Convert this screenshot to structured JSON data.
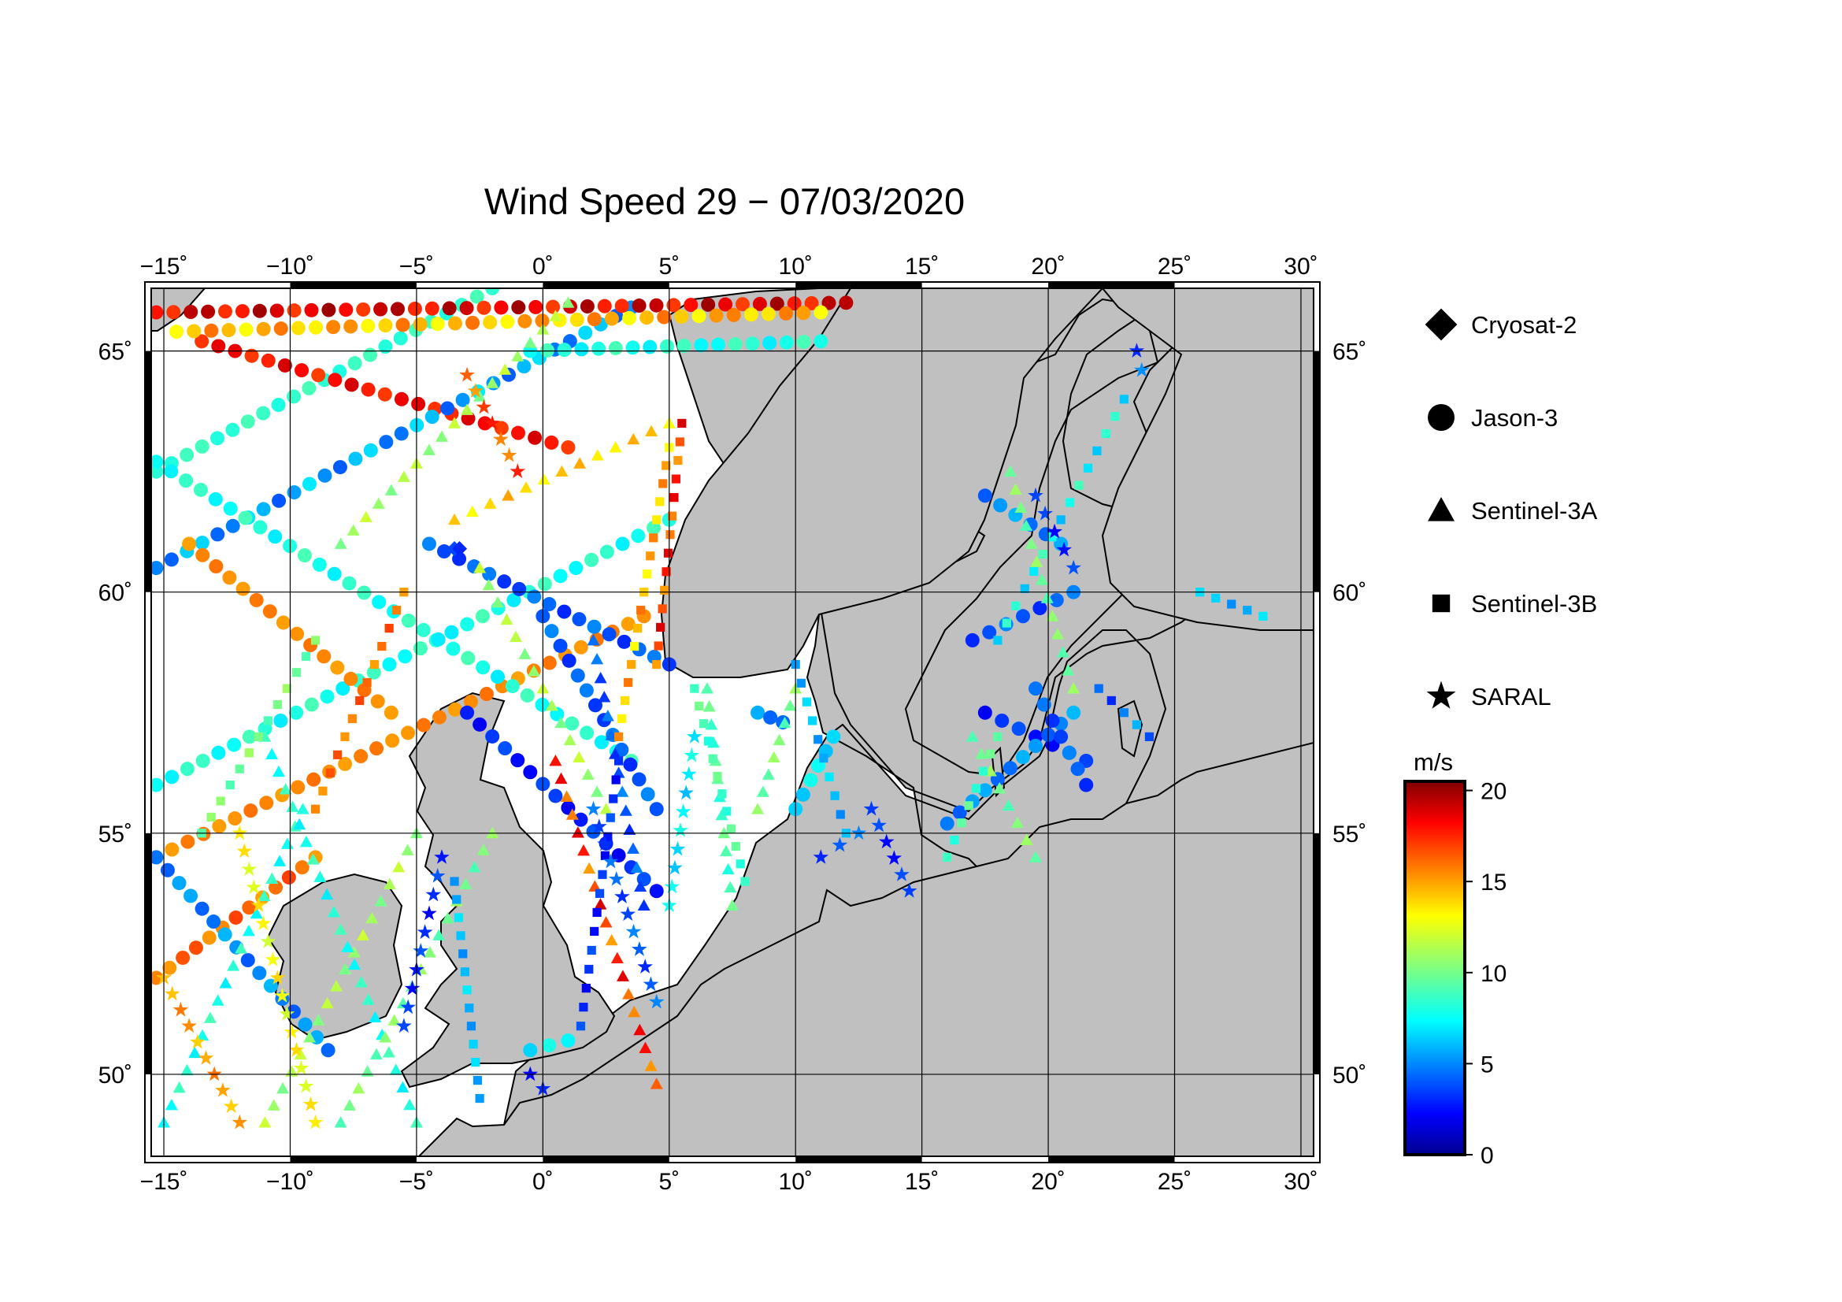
{
  "title": "Wind Speed 29 − 07/03/2020",
  "map": {
    "lon_range": [
      -15.5,
      30.5
    ],
    "lat_range": [
      48.3,
      66.3
    ],
    "lon_ticks": [
      -15,
      -10,
      -5,
      0,
      5,
      10,
      15,
      20,
      25,
      30
    ],
    "lon_tick_labels": [
      "−15˚",
      "−10˚",
      "−5˚",
      "0˚",
      "5˚",
      "10˚",
      "15˚",
      "20˚",
      "25˚",
      "30˚"
    ],
    "lat_ticks": [
      50,
      55,
      60,
      65
    ],
    "lat_tick_labels": [
      "50˚",
      "55˚",
      "60˚",
      "65˚"
    ],
    "land_color": "#c0c0c0",
    "sea_color": "#ffffff"
  },
  "legend": {
    "items": [
      {
        "label": "Cryosat-2",
        "symbol": "diamond"
      },
      {
        "label": "Jason-3",
        "symbol": "circle"
      },
      {
        "label": "Sentinel-3A",
        "symbol": "triangle"
      },
      {
        "label": "Sentinel-3B",
        "symbol": "square"
      },
      {
        "label": "SARAL",
        "symbol": "star"
      }
    ]
  },
  "colorbar": {
    "unit": "m/s",
    "min": 0,
    "max": 20.5,
    "ticks": [
      0,
      5,
      10,
      15,
      20
    ],
    "tick_labels": [
      "0",
      "5",
      "10",
      "15",
      "20"
    ],
    "colormap": "jet"
  },
  "chart_data": {
    "type": "scatter",
    "title": "Wind Speed 29 − 07/03/2020",
    "xlim": [
      -15.5,
      30.5
    ],
    "ylim": [
      48.3,
      66.3
    ],
    "value_unit": "m/s",
    "series": [
      {
        "name": "Jason-3",
        "symbol": "circle",
        "tracks": [
          {
            "from": [
              -15.3,
              62.5
            ],
            "to": [
              -2.0,
              66.3
            ],
            "speed": [
              8,
              9
            ]
          },
          {
            "from": [
              -13.5,
              65.2
            ],
            "to": [
              1.0,
              63.0
            ],
            "speed": [
              17,
              19
            ]
          },
          {
            "from": [
              -15.3,
              60.5
            ],
            "to": [
              3.5,
              65.9
            ],
            "speed": [
              4,
              7
            ]
          },
          {
            "from": [
              -15.3,
              56.0
            ],
            "to": [
              5.0,
              61.5
            ],
            "speed": [
              7,
              9
            ]
          },
          {
            "from": [
              -15.3,
              54.5
            ],
            "to": [
              4.0,
              59.5
            ],
            "speed": [
              15,
              16
            ]
          },
          {
            "from": [
              -14.0,
              61.0
            ],
            "to": [
              -6.0,
              57.5
            ],
            "speed": [
              15,
              16
            ]
          },
          {
            "from": [
              -15.3,
              62.7
            ],
            "to": [
              3.5,
              56.5
            ],
            "speed": [
              7,
              9
            ]
          },
          {
            "from": [
              -15.3,
              52.0
            ],
            "to": [
              -9.0,
              54.5
            ],
            "speed": [
              15,
              17
            ]
          },
          {
            "from": [
              -15.3,
              54.5
            ],
            "to": [
              -8.5,
              50.5
            ],
            "speed": [
              4,
              6
            ]
          },
          {
            "from": [
              -4.5,
              61.0
            ],
            "to": [
              5.0,
              58.5
            ],
            "speed": [
              3,
              5
            ]
          },
          {
            "from": [
              -3.0,
              57.5
            ],
            "to": [
              4.5,
              53.8
            ],
            "speed": [
              2,
              4
            ]
          },
          {
            "from": [
              0.0,
              59.5
            ],
            "to": [
              4.5,
              55.5
            ],
            "speed": [
              3,
              5
            ]
          },
          {
            "from": [
              -15.3,
              65.8
            ],
            "to": [
              12.0,
              66.0
            ],
            "speed": [
              17,
              20
            ]
          },
          {
            "from": [
              -14.5,
              65.4
            ],
            "to": [
              11.0,
              65.8
            ],
            "speed": [
              13,
              16
            ]
          },
          {
            "from": [
              -0.5,
              65.0
            ],
            "to": [
              11.0,
              65.2
            ],
            "speed": [
              7,
              9
            ]
          },
          {
            "from": [
              17.0,
              59.0
            ],
            "to": [
              21.0,
              60.0
            ],
            "speed": [
              3,
              5
            ]
          },
          {
            "from": [
              17.5,
              57.5
            ],
            "to": [
              21.5,
              56.5
            ],
            "speed": [
              2,
              4
            ]
          },
          {
            "from": [
              16.0,
              55.2
            ],
            "to": [
              21.0,
              57.5
            ],
            "speed": [
              4,
              6
            ]
          },
          {
            "from": [
              19.5,
              58.0
            ],
            "to": [
              21.5,
              56.0
            ],
            "speed": [
              3,
              5
            ]
          },
          {
            "from": [
              10.0,
              55.5
            ],
            "to": [
              11.5,
              57.0
            ],
            "speed": [
              6,
              8
            ]
          },
          {
            "from": [
              8.5,
              57.5
            ],
            "to": [
              9.5,
              57.3
            ],
            "speed": [
              4,
              6
            ]
          },
          {
            "from": [
              -0.5,
              50.5
            ],
            "to": [
              1.0,
              50.7
            ],
            "speed": [
              6,
              8
            ]
          },
          {
            "from": [
              17.5,
              62.0
            ],
            "to": [
              20.5,
              61.0
            ],
            "speed": [
              4,
              6
            ]
          }
        ]
      },
      {
        "name": "Sentinel-3A",
        "symbol": "triangle",
        "tracks": [
          {
            "from": [
              -15.0,
              49.0
            ],
            "to": [
              -9.5,
              55.5
            ],
            "speed": [
              7,
              9
            ]
          },
          {
            "from": [
              -11.0,
              49.0
            ],
            "to": [
              -5.0,
              55.0
            ],
            "speed": [
              10,
              12
            ]
          },
          {
            "from": [
              -5.0,
              49.0
            ],
            "to": [
              -11.0,
              57.0
            ],
            "speed": [
              7,
              9
            ]
          },
          {
            "from": [
              0.5,
              56.5
            ],
            "to": [
              4.5,
              49.8
            ],
            "speed": [
              15,
              19
            ]
          },
          {
            "from": [
              2.5,
              55.5
            ],
            "to": [
              -2.5,
              60.5
            ],
            "speed": [
              10,
              12
            ]
          },
          {
            "from": [
              4.0,
              53.5
            ],
            "to": [
              2.0,
              59.0
            ],
            "speed": [
              3,
              5
            ]
          },
          {
            "from": [
              6.5,
              58.0
            ],
            "to": [
              7.5,
              53.5
            ],
            "speed": [
              8,
              10
            ]
          },
          {
            "from": [
              -8.0,
              49.0
            ],
            "to": [
              -2.0,
              55.0
            ],
            "speed": [
              9,
              11
            ]
          },
          {
            "from": [
              18.5,
              62.5
            ],
            "to": [
              21.0,
              58.0
            ],
            "speed": [
              9,
              11
            ]
          },
          {
            "from": [
              17.0,
              57.0
            ],
            "to": [
              19.5,
              54.5
            ],
            "speed": [
              9,
              11
            ]
          },
          {
            "from": [
              -8.0,
              61.0
            ],
            "to": [
              1.0,
              66.0
            ],
            "speed": [
              10,
              12
            ]
          },
          {
            "from": [
              -3.5,
              61.5
            ],
            "to": [
              5.0,
              63.5
            ],
            "speed": [
              13,
              15
            ]
          },
          {
            "from": [
              8.5,
              55.5
            ],
            "to": [
              10.0,
              58.0
            ],
            "speed": [
              9,
              11
            ]
          }
        ]
      },
      {
        "name": "Sentinel-3B",
        "symbol": "square",
        "tracks": [
          {
            "from": [
              -13.5,
              55.0
            ],
            "to": [
              -9.0,
              59.0
            ],
            "speed": [
              9,
              11
            ]
          },
          {
            "from": [
              -9.0,
              55.5
            ],
            "to": [
              -5.5,
              60.0
            ],
            "speed": [
              15,
              17
            ]
          },
          {
            "from": [
              1.5,
              51.0
            ],
            "to": [
              3.0,
              56.5
            ],
            "speed": [
              2,
              4
            ]
          },
          {
            "from": [
              4.5,
              58.5
            ],
            "to": [
              5.5,
              63.5
            ],
            "speed": [
              15,
              19
            ]
          },
          {
            "from": [
              5.0,
              63.0
            ],
            "to": [
              3.0,
              57.0
            ],
            "speed": [
              13,
              16
            ]
          },
          {
            "from": [
              -2.5,
              49.5
            ],
            "to": [
              -3.5,
              54.0
            ],
            "speed": [
              5,
              7
            ]
          },
          {
            "from": [
              6.0,
              58.0
            ],
            "to": [
              8.0,
              54.0
            ],
            "speed": [
              8,
              10
            ]
          },
          {
            "from": [
              10.0,
              58.5
            ],
            "to": [
              12.0,
              55.0
            ],
            "speed": [
              5,
              7
            ]
          },
          {
            "from": [
              16.0,
              54.5
            ],
            "to": [
              18.0,
              57.0
            ],
            "speed": [
              8,
              10
            ]
          },
          {
            "from": [
              18.0,
              59.0
            ],
            "to": [
              23.0,
              64.0
            ],
            "speed": [
              6,
              9
            ]
          },
          {
            "from": [
              22.0,
              58.0
            ],
            "to": [
              24.0,
              57.0
            ],
            "speed": [
              3,
              6
            ]
          },
          {
            "from": [
              26.0,
              60.0
            ],
            "to": [
              28.5,
              59.5
            ],
            "speed": [
              5,
              7
            ]
          }
        ]
      },
      {
        "name": "SARAL",
        "symbol": "star",
        "tracks": [
          {
            "from": [
              -15.0,
              52.0
            ],
            "to": [
              -12.0,
              49.0
            ],
            "speed": [
              14,
              16
            ]
          },
          {
            "from": [
              -12.0,
              55.0
            ],
            "to": [
              -9.0,
              49.0
            ],
            "speed": [
              12,
              14
            ]
          },
          {
            "from": [
              -5.5,
              51.0
            ],
            "to": [
              -4.0,
              54.5
            ],
            "speed": [
              2,
              4
            ]
          },
          {
            "from": [
              2.0,
              55.5
            ],
            "to": [
              4.5,
              51.5
            ],
            "speed": [
              3,
              5
            ]
          },
          {
            "from": [
              6.0,
              57.0
            ],
            "to": [
              5.0,
              53.5
            ],
            "speed": [
              6,
              8
            ]
          },
          {
            "from": [
              13.0,
              55.5
            ],
            "to": [
              14.5,
              53.8
            ],
            "speed": [
              2,
              4
            ]
          },
          {
            "from": [
              11.0,
              54.5
            ],
            "to": [
              12.5,
              55.0
            ],
            "speed": [
              3,
              5
            ]
          },
          {
            "from": [
              19.5,
              62.0
            ],
            "to": [
              21.0,
              60.5
            ],
            "speed": [
              2,
              4
            ]
          },
          {
            "from": [
              23.5,
              65.0
            ],
            "to": [
              23.7,
              64.6
            ],
            "speed": [
              3,
              7
            ]
          },
          {
            "from": [
              -3.0,
              64.5
            ],
            "to": [
              -1.0,
              62.5
            ],
            "speed": [
              15,
              18
            ]
          },
          {
            "from": [
              -0.5,
              50.0
            ],
            "to": [
              0.0,
              49.7
            ],
            "speed": [
              2,
              3
            ]
          }
        ]
      },
      {
        "name": "Cryosat-2",
        "symbol": "diamond",
        "tracks": [
          {
            "from": [
              -3.5,
              60.9
            ],
            "to": [
              -3.3,
              60.9
            ],
            "speed": [
              3,
              4
            ]
          }
        ]
      }
    ]
  }
}
